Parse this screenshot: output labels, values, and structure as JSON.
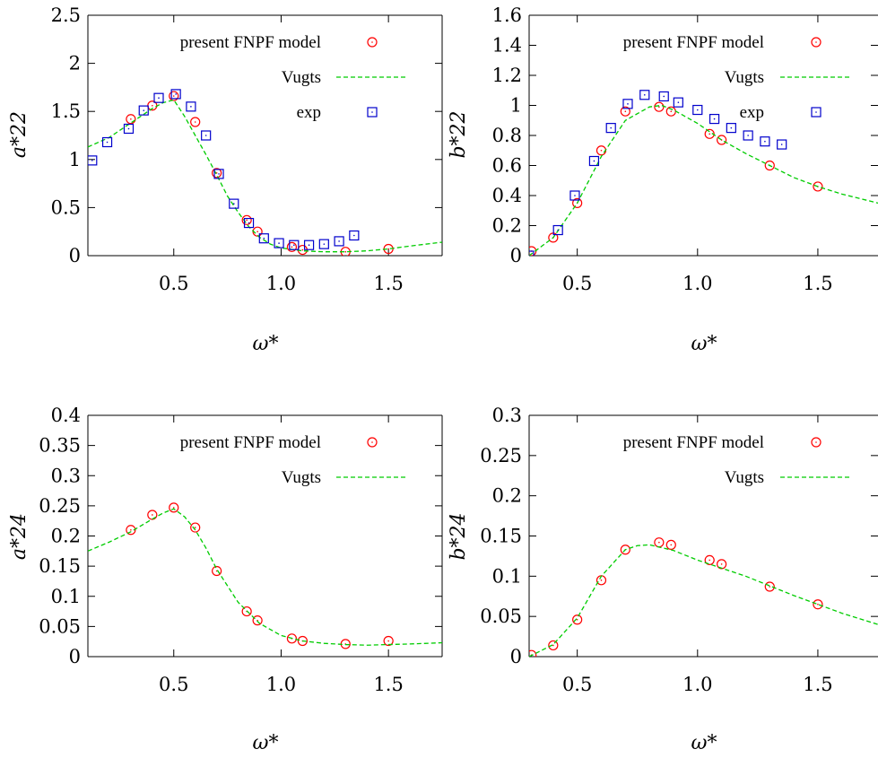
{
  "colors": {
    "fnpf": "#ff0000",
    "vugts": "#00cc00",
    "exp": "#0000cc",
    "axes": "#000000"
  },
  "chart_data": [
    {
      "type": "scatter",
      "ylabel": "a*22",
      "xlabel": "ω*",
      "xlim": [
        0.1,
        1.75
      ],
      "ylim": [
        0,
        2.5
      ],
      "x_ticks": [
        0.5,
        1.0,
        1.5
      ],
      "x_tick_labels": [
        "0.5",
        "1.0",
        "1.5"
      ],
      "y_ticks": [
        0,
        0.5,
        1,
        1.5,
        2,
        2.5
      ],
      "y_tick_labels": [
        "0",
        "0.5",
        "1",
        "1.5",
        "2",
        "2.5"
      ],
      "grid": false,
      "legend_position": "top-right",
      "series": [
        {
          "name": "present FNPF model",
          "kind": "points",
          "marker": "circle",
          "color": "#ff0000",
          "x": [
            0.3,
            0.4,
            0.5,
            0.6,
            0.7,
            0.84,
            0.89,
            1.05,
            1.1,
            1.3,
            1.5
          ],
          "y": [
            1.42,
            1.56,
            1.66,
            1.39,
            0.86,
            0.37,
            0.25,
            0.09,
            0.06,
            0.04,
            0.07
          ]
        },
        {
          "name": "Vugts",
          "kind": "line",
          "color": "#00cc00",
          "x": [
            0.1,
            0.2,
            0.3,
            0.4,
            0.45,
            0.5,
            0.55,
            0.6,
            0.65,
            0.7,
            0.75,
            0.8,
            0.85,
            0.9,
            0.95,
            1.0,
            1.1,
            1.2,
            1.3,
            1.4,
            1.5,
            1.6,
            1.75
          ],
          "y": [
            1.13,
            1.23,
            1.38,
            1.53,
            1.59,
            1.62,
            1.45,
            1.25,
            1.05,
            0.84,
            0.62,
            0.45,
            0.3,
            0.19,
            0.12,
            0.08,
            0.05,
            0.04,
            0.04,
            0.05,
            0.07,
            0.1,
            0.14
          ]
        },
        {
          "name": "exp",
          "kind": "points",
          "marker": "square",
          "color": "#0000cc",
          "x": [
            0.12,
            0.19,
            0.29,
            0.36,
            0.43,
            0.51,
            0.58,
            0.65,
            0.71,
            0.78,
            0.85,
            0.92,
            0.99,
            1.06,
            1.13,
            1.2,
            1.27,
            1.34
          ],
          "y": [
            0.99,
            1.18,
            1.32,
            1.51,
            1.64,
            1.68,
            1.55,
            1.25,
            0.85,
            0.54,
            0.34,
            0.18,
            0.13,
            0.11,
            0.11,
            0.12,
            0.15,
            0.21
          ]
        }
      ]
    },
    {
      "type": "scatter",
      "ylabel": "b*22",
      "xlabel": "ω*",
      "xlim": [
        0.3,
        1.75
      ],
      "ylim": [
        0,
        1.6
      ],
      "x_ticks": [
        0.5,
        1.0,
        1.5
      ],
      "x_tick_labels": [
        "0.5",
        "1.0",
        "1.5"
      ],
      "y_ticks": [
        0,
        0.2,
        0.4,
        0.6,
        0.8,
        1,
        1.2,
        1.4,
        1.6
      ],
      "y_tick_labels": [
        "0",
        "0.2",
        "0.4",
        "0.6",
        "0.8",
        "1",
        "1.2",
        "1.4",
        "1.6"
      ],
      "grid": false,
      "legend_position": "top-right",
      "series": [
        {
          "name": "present FNPF model",
          "kind": "points",
          "marker": "circle",
          "color": "#ff0000",
          "x": [
            0.31,
            0.4,
            0.5,
            0.6,
            0.7,
            0.84,
            0.89,
            1.05,
            1.1,
            1.3,
            1.5
          ],
          "y": [
            0.03,
            0.12,
            0.35,
            0.7,
            0.96,
            0.99,
            0.96,
            0.81,
            0.77,
            0.6,
            0.46
          ]
        },
        {
          "name": "Vugts",
          "kind": "line",
          "color": "#00cc00",
          "x": [
            0.3,
            0.4,
            0.5,
            0.6,
            0.7,
            0.8,
            0.85,
            0.9,
            1.0,
            1.1,
            1.2,
            1.3,
            1.4,
            1.5,
            1.6,
            1.75
          ],
          "y": [
            0.0,
            0.12,
            0.35,
            0.66,
            0.9,
            0.99,
            1.0,
            0.97,
            0.88,
            0.77,
            0.68,
            0.6,
            0.52,
            0.46,
            0.41,
            0.35
          ]
        },
        {
          "name": "exp",
          "kind": "points",
          "marker": "square",
          "color": "#0000cc",
          "x": [
            0.3,
            0.42,
            0.49,
            0.57,
            0.64,
            0.71,
            0.78,
            0.86,
            0.92,
            1.0,
            1.07,
            1.14,
            1.21,
            1.28,
            1.35
          ],
          "y": [
            0.0,
            0.17,
            0.4,
            0.63,
            0.85,
            1.01,
            1.07,
            1.06,
            1.02,
            0.97,
            0.91,
            0.85,
            0.8,
            0.76,
            0.74
          ]
        }
      ]
    },
    {
      "type": "scatter",
      "ylabel": "a*24",
      "xlabel": "ω*",
      "xlim": [
        0.1,
        1.75
      ],
      "ylim": [
        0,
        0.4
      ],
      "x_ticks": [
        0.5,
        1.0,
        1.5
      ],
      "x_tick_labels": [
        "0.5",
        "1.0",
        "1.5"
      ],
      "y_ticks": [
        0,
        0.05,
        0.1,
        0.15,
        0.2,
        0.25,
        0.3,
        0.35,
        0.4
      ],
      "y_tick_labels": [
        "0",
        "0.05",
        "0.1",
        "0.15",
        "0.2",
        "0.25",
        "0.3",
        "0.35",
        "0.4"
      ],
      "grid": false,
      "legend_position": "top-right",
      "series": [
        {
          "name": "present FNPF model",
          "kind": "points",
          "marker": "circle",
          "color": "#ff0000",
          "x": [
            0.3,
            0.4,
            0.5,
            0.6,
            0.7,
            0.84,
            0.89,
            1.05,
            1.1,
            1.3,
            1.5
          ],
          "y": [
            0.21,
            0.235,
            0.247,
            0.214,
            0.142,
            0.075,
            0.06,
            0.03,
            0.026,
            0.021,
            0.026
          ]
        },
        {
          "name": "Vugts",
          "kind": "line",
          "color": "#00cc00",
          "x": [
            0.1,
            0.2,
            0.3,
            0.4,
            0.45,
            0.5,
            0.55,
            0.6,
            0.65,
            0.7,
            0.8,
            0.9,
            1.0,
            1.1,
            1.2,
            1.3,
            1.4,
            1.5,
            1.6,
            1.75
          ],
          "y": [
            0.175,
            0.19,
            0.207,
            0.228,
            0.238,
            0.245,
            0.232,
            0.21,
            0.18,
            0.145,
            0.09,
            0.055,
            0.035,
            0.026,
            0.022,
            0.02,
            0.019,
            0.02,
            0.021,
            0.023
          ]
        }
      ]
    },
    {
      "type": "scatter",
      "ylabel": "b*24",
      "xlabel": "ω*",
      "xlim": [
        0.3,
        1.75
      ],
      "ylim": [
        0,
        0.3
      ],
      "x_ticks": [
        0.5,
        1.0,
        1.5
      ],
      "x_tick_labels": [
        "0.5",
        "1.0",
        "1.5"
      ],
      "y_ticks": [
        0,
        0.05,
        0.1,
        0.15,
        0.2,
        0.25,
        0.3
      ],
      "y_tick_labels": [
        "0",
        "0.05",
        "0.1",
        "0.15",
        "0.2",
        "0.25",
        "0.3"
      ],
      "grid": false,
      "legend_position": "top-right",
      "series": [
        {
          "name": "present FNPF model",
          "kind": "points",
          "marker": "circle",
          "color": "#ff0000",
          "x": [
            0.31,
            0.4,
            0.5,
            0.6,
            0.7,
            0.84,
            0.89,
            1.05,
            1.1,
            1.3,
            1.5
          ],
          "y": [
            0.002,
            0.014,
            0.046,
            0.095,
            0.133,
            0.142,
            0.139,
            0.12,
            0.115,
            0.087,
            0.065
          ]
        },
        {
          "name": "Vugts",
          "kind": "line",
          "color": "#00cc00",
          "x": [
            0.3,
            0.4,
            0.5,
            0.6,
            0.7,
            0.75,
            0.8,
            0.9,
            1.0,
            1.1,
            1.2,
            1.3,
            1.4,
            1.5,
            1.6,
            1.75
          ],
          "y": [
            0.0,
            0.015,
            0.048,
            0.1,
            0.133,
            0.138,
            0.139,
            0.132,
            0.12,
            0.11,
            0.1,
            0.088,
            0.076,
            0.065,
            0.054,
            0.04
          ]
        }
      ]
    }
  ]
}
